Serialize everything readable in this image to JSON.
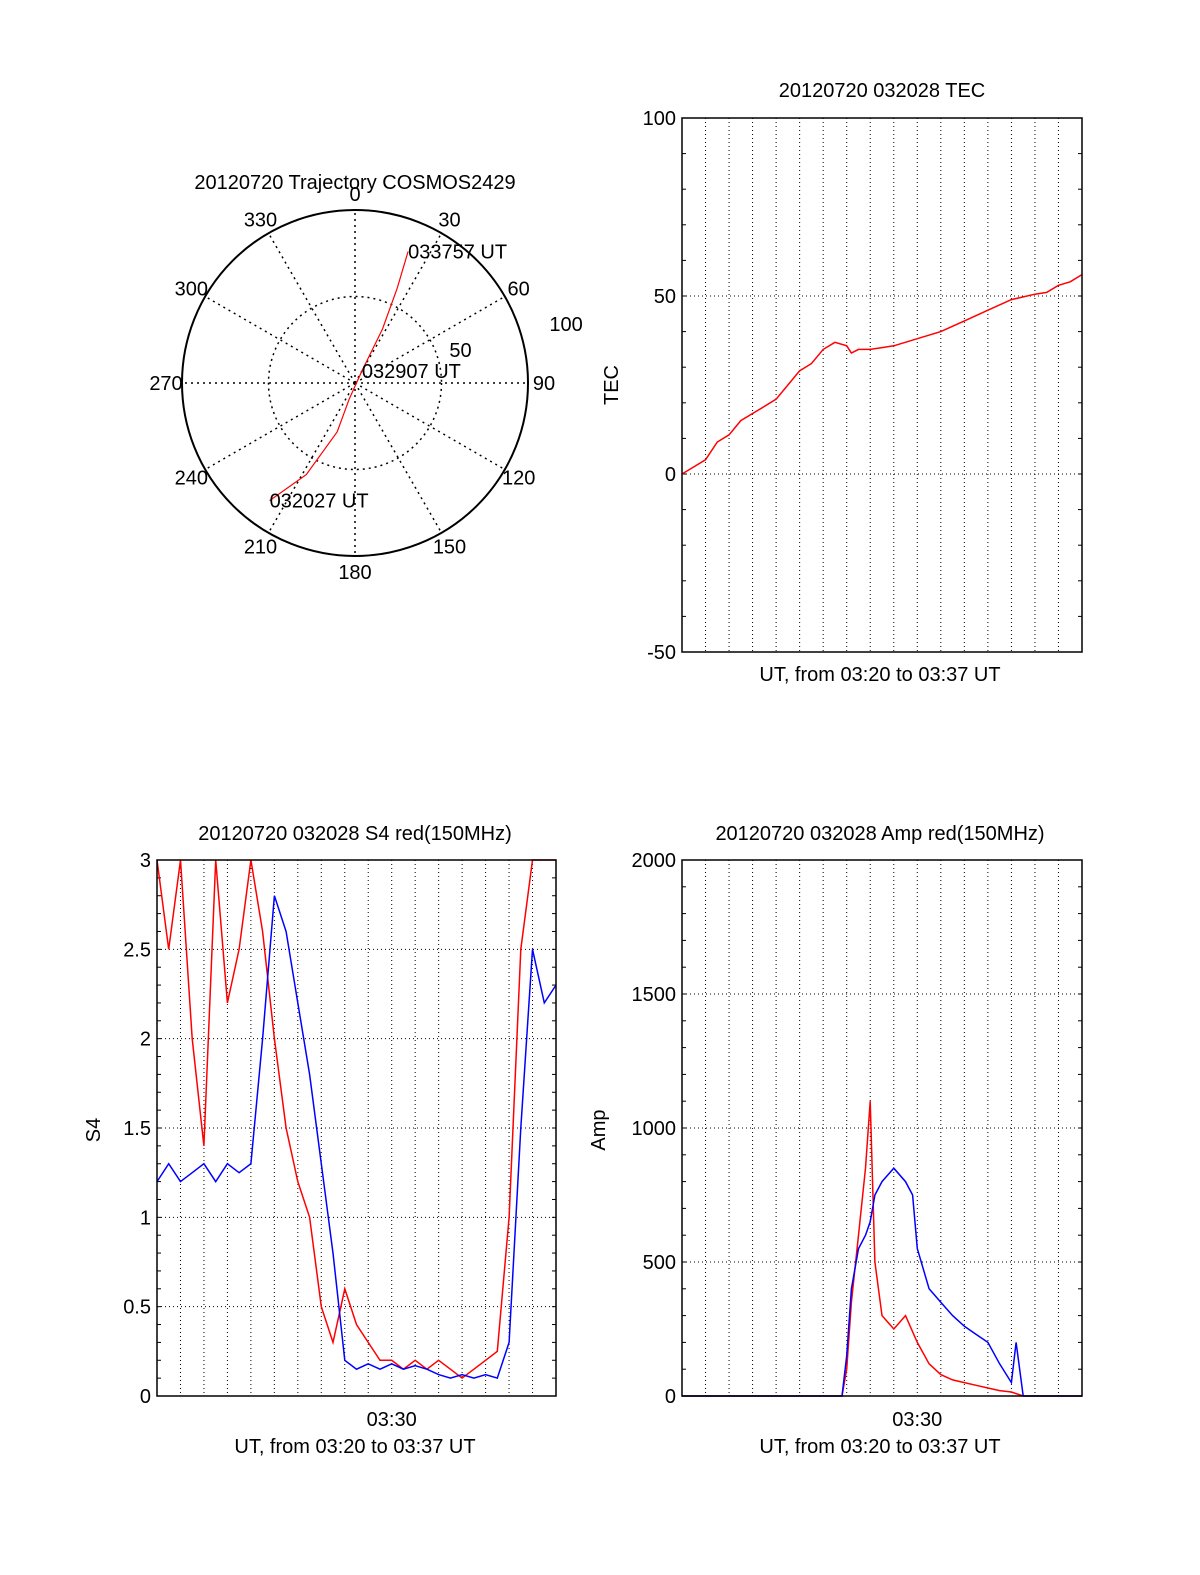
{
  "colors": {
    "red": "#ff0000",
    "blue": "#0000ff",
    "axis": "#000000",
    "grid": "#000000"
  },
  "chart_data": [
    {
      "type": "polar",
      "title": "20120720 Trajectory COSMOS2429",
      "angle_labels": [
        "0",
        "30",
        "60",
        "90",
        "120",
        "150",
        "180",
        "210",
        "240",
        "270",
        "300",
        "330"
      ],
      "radial_labels": [
        "50",
        "100"
      ],
      "radial_range": [
        0,
        100
      ],
      "grid": true,
      "series": [
        {
          "color": "red",
          "points": [
            {
              "az": 216,
              "el": 84,
              "label": "032027 UT"
            },
            {
              "az": 208,
              "el": 60
            },
            {
              "az": 200,
              "el": 30
            },
            {
              "az": 200,
              "el": 10
            },
            {
              "az": 30,
              "el": 8,
              "label": "032907 UT"
            },
            {
              "az": 27,
              "el": 35
            },
            {
              "az": 24,
              "el": 60
            },
            {
              "az": 22,
              "el": 82,
              "label": "033757 UT"
            }
          ]
        }
      ]
    },
    {
      "type": "line",
      "title": "20120720 032028 TEC",
      "xlabel": "UT, from 03:20 to 03:37 UT",
      "ylabel": "TEC",
      "xlim": [
        0,
        17
      ],
      "ylim": [
        -50,
        100
      ],
      "yticks": [
        "-50",
        "0",
        "50",
        "100"
      ],
      "xticks": [],
      "grid": true,
      "series": [
        {
          "color": "red",
          "x": [
            0,
            0.5,
            1,
            1.5,
            2,
            2.5,
            3,
            3.5,
            4,
            4.5,
            5,
            5.5,
            6,
            6.5,
            7,
            7.2,
            7.5,
            8,
            8.5,
            9,
            10,
            11,
            12,
            13,
            14,
            15,
            15.5,
            16,
            16.5,
            17
          ],
          "y": [
            0,
            2,
            4,
            9,
            11,
            15,
            17,
            19,
            21,
            25,
            29,
            31,
            35,
            37,
            36,
            34,
            35,
            35,
            35.5,
            36,
            38,
            40,
            43,
            46,
            49,
            50.5,
            51,
            53,
            54,
            56
          ]
        }
      ]
    },
    {
      "type": "line",
      "title": "20120720 032028 S4 red(150MHz)",
      "xlabel": "UT, from 03:20 to 03:37 UT",
      "ylabel": "S4",
      "xlim": [
        0,
        17
      ],
      "ylim": [
        0,
        3
      ],
      "yticks": [
        "0",
        "0.5",
        "1",
        "1.5",
        "2",
        "2.5",
        "3"
      ],
      "xticks": [
        "03:30"
      ],
      "grid": true,
      "series": [
        {
          "color": "red",
          "x": [
            0,
            0.5,
            1,
            1.5,
            2,
            2.5,
            3,
            3.5,
            4,
            4.5,
            5,
            5.5,
            6,
            6.5,
            7,
            7.5,
            8,
            8.5,
            9,
            9.5,
            10,
            10.5,
            11,
            11.5,
            12,
            12.5,
            13,
            13.5,
            14,
            14.5,
            15,
            15.5,
            16,
            16.5,
            17
          ],
          "y": [
            3,
            2.5,
            3,
            2,
            1.4,
            3,
            2.2,
            2.5,
            3,
            2.6,
            2,
            1.5,
            1.2,
            1,
            0.5,
            0.3,
            0.6,
            0.4,
            0.3,
            0.2,
            0.2,
            0.15,
            0.2,
            0.15,
            0.2,
            0.15,
            0.1,
            0.15,
            0.2,
            0.25,
            1,
            2.5,
            3,
            3,
            3
          ]
        },
        {
          "color": "blue",
          "x": [
            0,
            0.5,
            1,
            1.5,
            2,
            2.5,
            3,
            3.5,
            4,
            4.5,
            5,
            5.5,
            6,
            6.5,
            7,
            7.5,
            8,
            8.5,
            9,
            9.5,
            10,
            10.5,
            11,
            11.5,
            12,
            12.5,
            13,
            13.5,
            14,
            14.5,
            15,
            15.5,
            16,
            16.5,
            17
          ],
          "y": [
            1.2,
            1.3,
            1.2,
            1.25,
            1.3,
            1.2,
            1.3,
            1.25,
            1.3,
            2,
            2.8,
            2.6,
            2.2,
            1.8,
            1.3,
            0.8,
            0.2,
            0.15,
            0.18,
            0.15,
            0.18,
            0.15,
            0.17,
            0.15,
            0.12,
            0.1,
            0.12,
            0.1,
            0.12,
            0.1,
            0.3,
            1.5,
            2.5,
            2.2,
            2.3
          ]
        }
      ]
    },
    {
      "type": "line",
      "title": "20120720 032028 Amp red(150MHz)",
      "xlabel": "UT, from 03:20 to 03:37 UT",
      "ylabel": "Amp",
      "xlim": [
        0,
        17
      ],
      "ylim": [
        0,
        2000
      ],
      "yticks": [
        "0",
        "500",
        "1000",
        "1500",
        "2000"
      ],
      "xticks": [
        "03:30"
      ],
      "grid": true,
      "series": [
        {
          "color": "red",
          "x": [
            0,
            2,
            4,
            6,
            6.8,
            7,
            7.2,
            7.5,
            7.8,
            8,
            8.2,
            8.5,
            9,
            9.5,
            10,
            10.5,
            11,
            11.5,
            12,
            12.5,
            13,
            13.5,
            14,
            14.5,
            15,
            17
          ],
          "y": [
            0,
            0,
            0,
            0,
            0,
            100,
            350,
            600,
            850,
            1100,
            500,
            300,
            250,
            300,
            200,
            120,
            80,
            60,
            50,
            40,
            30,
            20,
            15,
            0,
            0,
            0
          ]
        },
        {
          "color": "blue",
          "x": [
            0,
            2,
            4,
            6,
            6.8,
            7,
            7.2,
            7.5,
            7.8,
            8,
            8.2,
            8.5,
            9,
            9.5,
            9.8,
            10,
            10.5,
            11,
            11.5,
            12,
            12.5,
            13,
            13.5,
            14,
            14.2,
            14.5,
            15,
            17
          ],
          "y": [
            0,
            0,
            0,
            0,
            0,
            150,
            400,
            550,
            600,
            650,
            750,
            800,
            850,
            800,
            750,
            550,
            400,
            350,
            300,
            260,
            230,
            200,
            120,
            50,
            200,
            0,
            0,
            0
          ]
        }
      ]
    }
  ]
}
